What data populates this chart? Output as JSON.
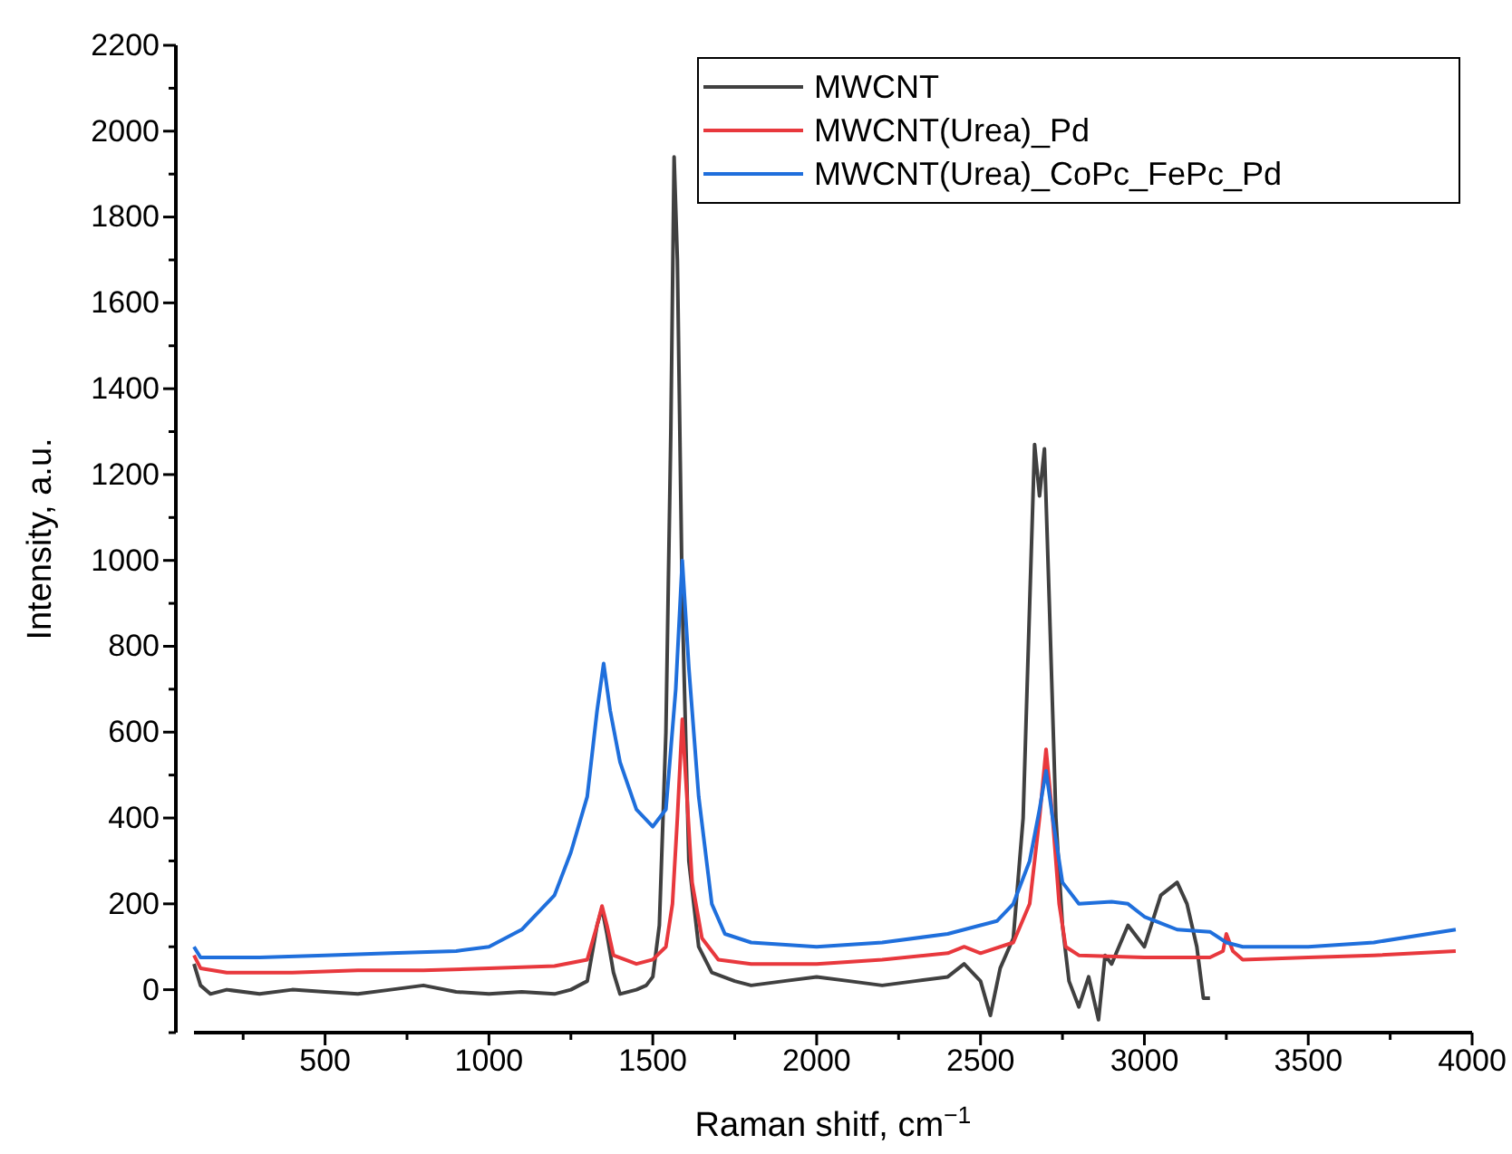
{
  "chart_data": {
    "type": "line",
    "xlabel": "Raman shitf, cm$^{−1}$",
    "ylabel": "Intensity, a.u.",
    "xlim": [
      100,
      4000
    ],
    "ylim": [
      -100,
      2200
    ],
    "xticks": [
      {
        "value": 250,
        "label": null
      },
      500,
      {
        "value": 750,
        "label": null
      },
      1000,
      {
        "value": 1250,
        "label": null
      },
      1500,
      {
        "value": 1750,
        "label": null
      },
      2000,
      {
        "value": 2250,
        "label": null
      },
      2500,
      {
        "value": 2750,
        "label": null
      },
      3000,
      {
        "value": 3250,
        "label": null
      },
      3500,
      {
        "value": 3750,
        "label": null
      },
      4000
    ],
    "yticks": [
      {
        "value": -100,
        "label": null
      },
      0,
      {
        "value": 100,
        "label": null
      },
      200,
      {
        "value": 300,
        "label": null
      },
      400,
      {
        "value": 500,
        "label": null
      },
      600,
      {
        "value": 700,
        "label": null
      },
      800,
      {
        "value": 900,
        "label": null
      },
      1000,
      {
        "value": 1100,
        "label": null
      },
      1200,
      {
        "value": 1300,
        "label": null
      },
      1400,
      {
        "value": 1500,
        "label": null
      },
      1600,
      {
        "value": 1700,
        "label": null
      },
      1800,
      {
        "value": 1900,
        "label": null
      },
      2000,
      {
        "value": 2100,
        "label": null
      },
      2200
    ],
    "grid": false,
    "legend": "top right",
    "line_style": "solid",
    "marker": "none",
    "series": [
      {
        "name": "MWCNT",
        "color": "#404040",
        "x": [
          100,
          120,
          150,
          200,
          300,
          400,
          500,
          600,
          700,
          800,
          900,
          1000,
          1100,
          1200,
          1250,
          1300,
          1330,
          1345,
          1360,
          1380,
          1400,
          1450,
          1480,
          1500,
          1520,
          1540,
          1555,
          1565,
          1575,
          1590,
          1610,
          1640,
          1680,
          1750,
          1800,
          1900,
          2000,
          2100,
          2200,
          2300,
          2400,
          2450,
          2500,
          2530,
          2560,
          2600,
          2630,
          2650,
          2665,
          2680,
          2695,
          2710,
          2730,
          2750,
          2770,
          2800,
          2830,
          2860,
          2880,
          2900,
          2950,
          3000,
          3050,
          3100,
          3130,
          3160,
          3180,
          3200
        ],
        "values": [
          60,
          10,
          -10,
          0,
          -10,
          0,
          -5,
          -10,
          0,
          10,
          -5,
          -10,
          -5,
          -10,
          0,
          20,
          150,
          190,
          130,
          40,
          -10,
          0,
          10,
          30,
          150,
          600,
          1300,
          1940,
          1700,
          900,
          300,
          100,
          40,
          20,
          10,
          20,
          30,
          20,
          10,
          20,
          30,
          60,
          20,
          -60,
          50,
          120,
          400,
          900,
          1270,
          1150,
          1260,
          900,
          400,
          150,
          20,
          -40,
          30,
          -70,
          80,
          60,
          150,
          100,
          220,
          250,
          200,
          100,
          -20,
          -20
        ]
      },
      {
        "name": "MWCNT(Urea)_Pd",
        "color": "#e8383d",
        "x": [
          100,
          120,
          200,
          400,
          600,
          800,
          1000,
          1200,
          1300,
          1330,
          1345,
          1360,
          1380,
          1450,
          1500,
          1540,
          1560,
          1575,
          1590,
          1600,
          1620,
          1650,
          1700,
          1800,
          2000,
          2200,
          2400,
          2450,
          2500,
          2600,
          2650,
          2680,
          2700,
          2720,
          2740,
          2760,
          2800,
          3000,
          3200,
          3240,
          3250,
          3270,
          3300,
          3500,
          3700,
          3950
        ],
        "values": [
          80,
          50,
          40,
          40,
          45,
          45,
          50,
          55,
          70,
          150,
          195,
          150,
          80,
          60,
          70,
          100,
          200,
          400,
          630,
          500,
          250,
          120,
          70,
          60,
          60,
          70,
          85,
          100,
          85,
          110,
          200,
          400,
          560,
          400,
          200,
          100,
          80,
          75,
          75,
          90,
          130,
          90,
          70,
          75,
          80,
          90
        ]
      },
      {
        "name": "MWCNT(Urea)_CoPc_FePc_Pd",
        "color": "#1f6fdc",
        "x": [
          100,
          120,
          300,
          500,
          700,
          900,
          1000,
          1100,
          1150,
          1200,
          1250,
          1300,
          1330,
          1350,
          1370,
          1400,
          1450,
          1500,
          1540,
          1570,
          1590,
          1610,
          1640,
          1680,
          1720,
          1800,
          2000,
          2200,
          2400,
          2500,
          2550,
          2600,
          2650,
          2680,
          2700,
          2720,
          2750,
          2800,
          2900,
          2950,
          3000,
          3100,
          3200,
          3250,
          3300,
          3500,
          3700,
          3950
        ],
        "values": [
          100,
          75,
          75,
          80,
          85,
          90,
          100,
          140,
          180,
          220,
          320,
          450,
          650,
          760,
          650,
          530,
          420,
          380,
          420,
          700,
          1000,
          750,
          450,
          200,
          130,
          110,
          100,
          110,
          130,
          150,
          160,
          200,
          300,
          420,
          510,
          400,
          250,
          200,
          205,
          200,
          170,
          140,
          135,
          110,
          100,
          100,
          110,
          140
        ]
      }
    ]
  }
}
